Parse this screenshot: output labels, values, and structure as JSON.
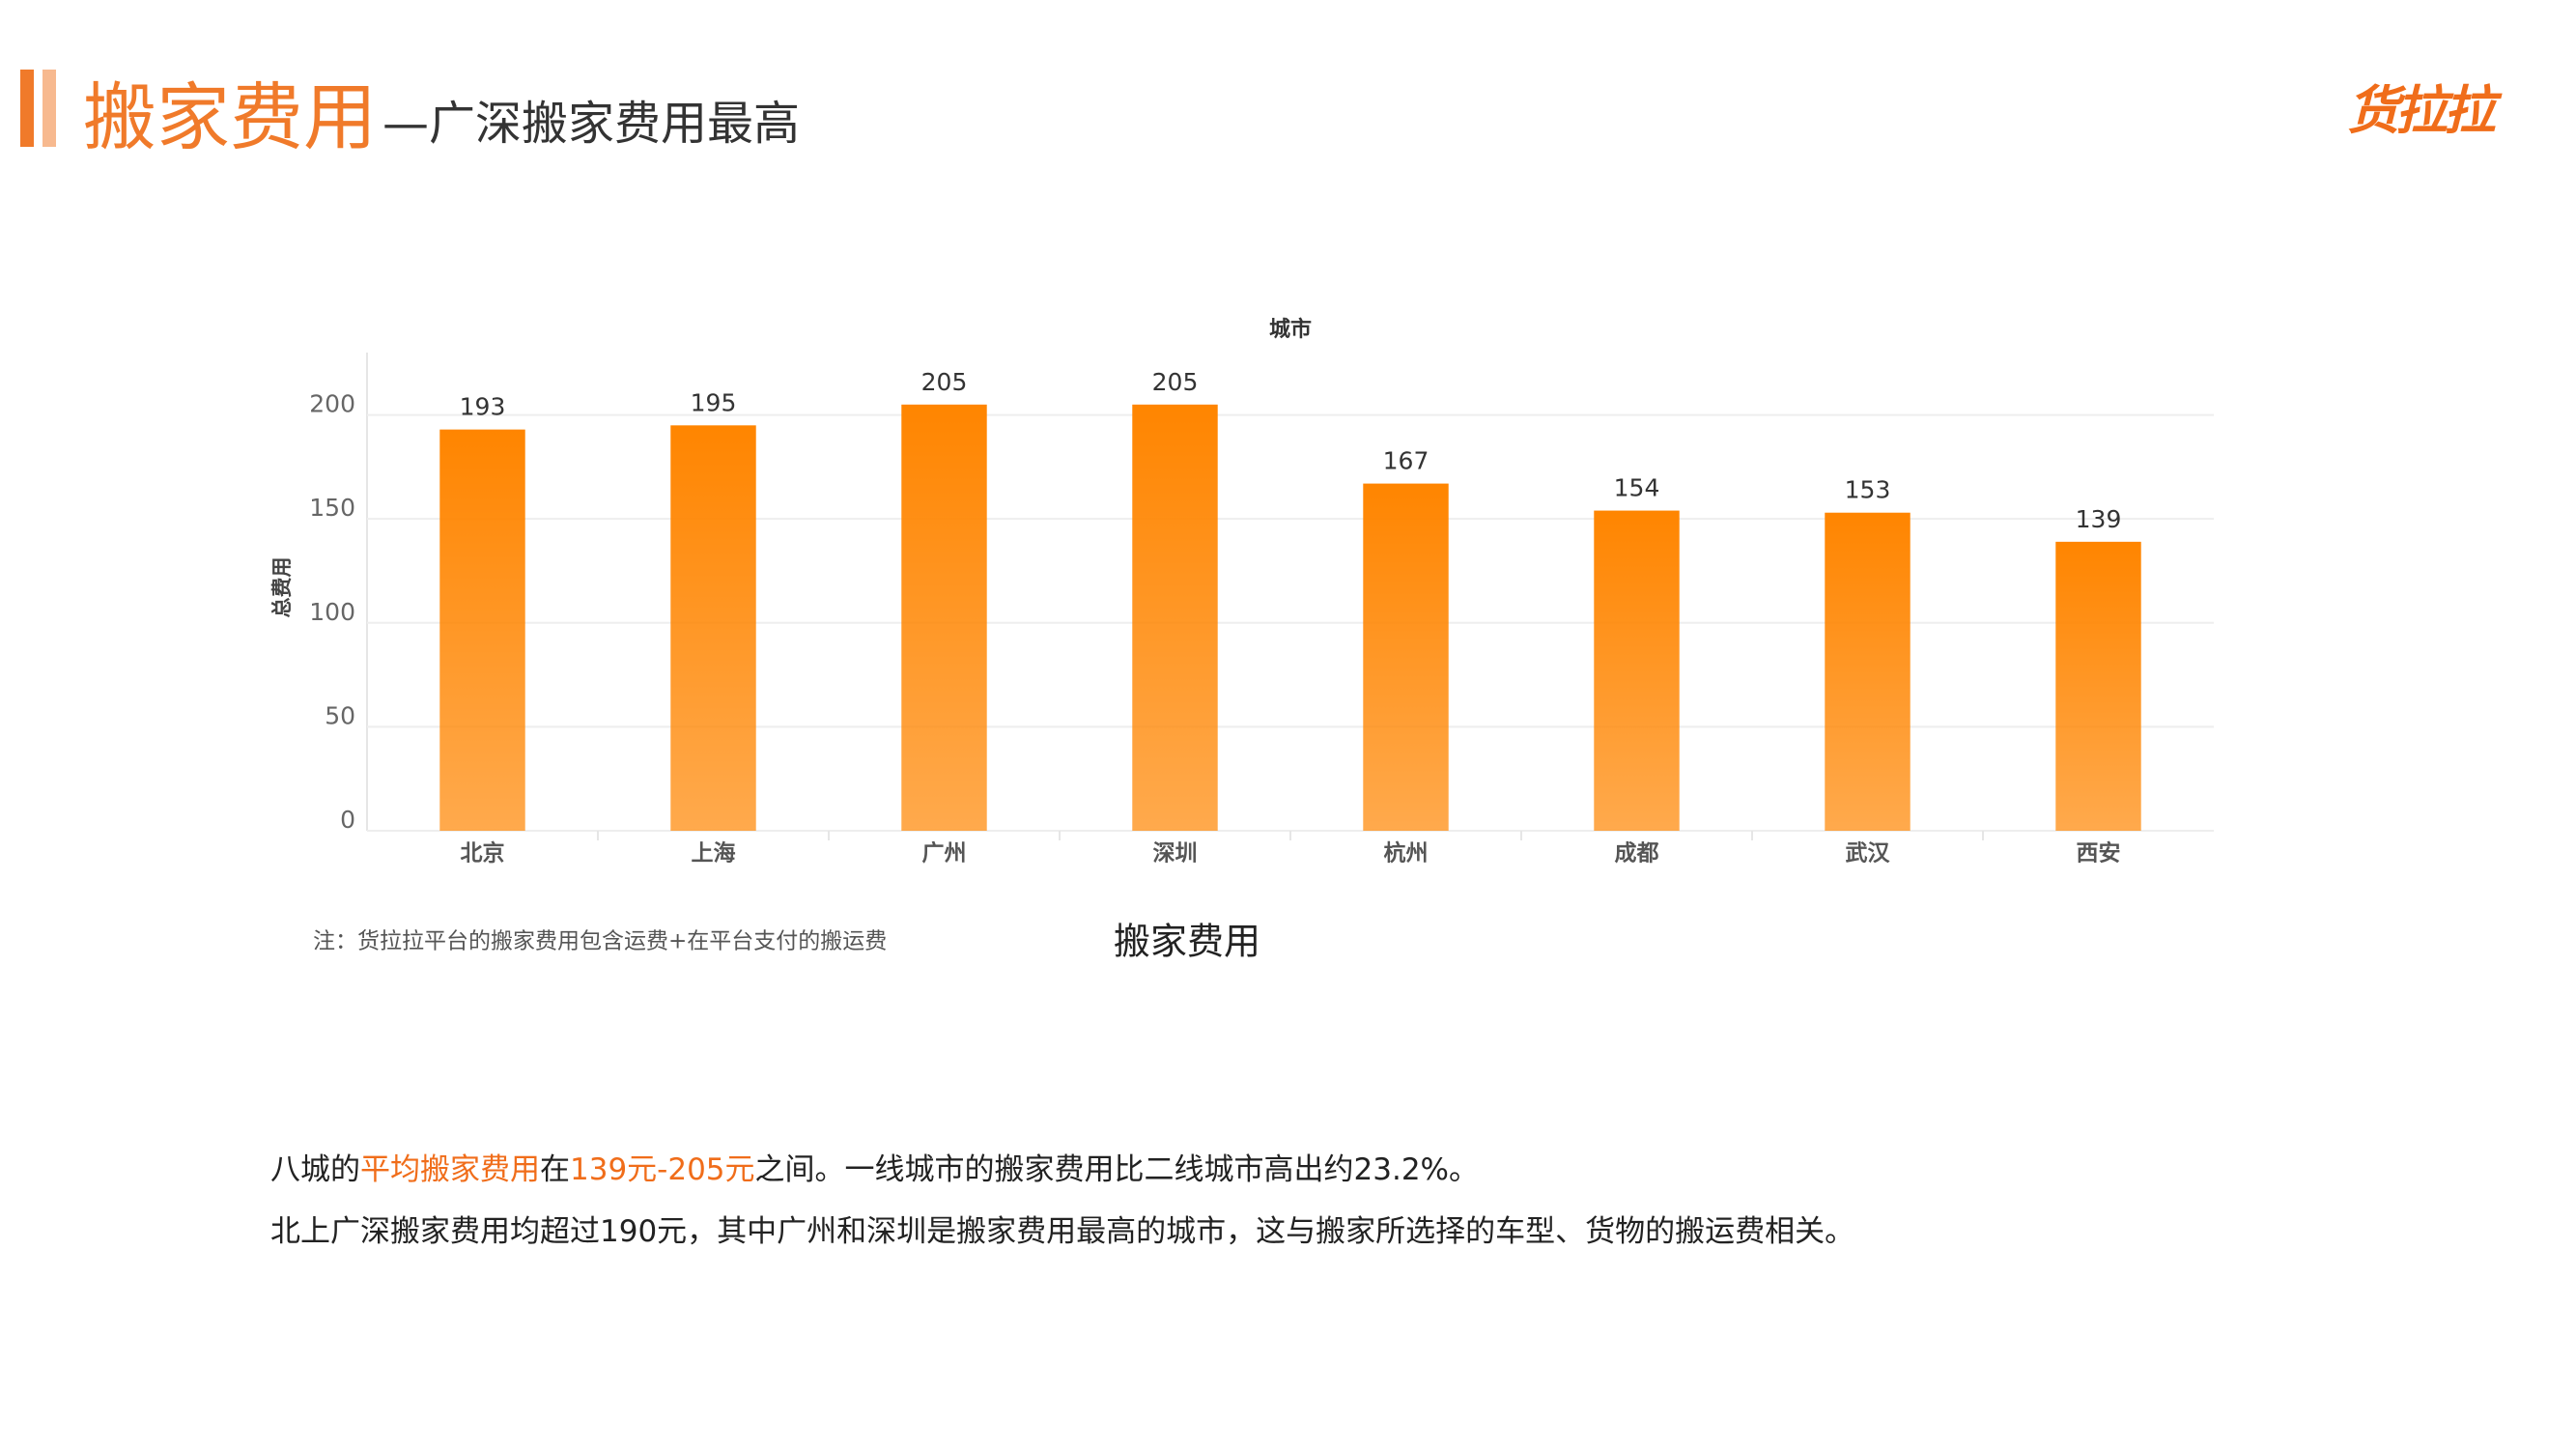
{
  "header": {
    "title": "搬家费用",
    "subtitle": "—广深搬家费用最高",
    "logo": "货拉拉"
  },
  "chart_data": {
    "type": "bar",
    "title": "城市",
    "ylabel": "总费用",
    "xlabel": "搬家费用",
    "categories": [
      "北京",
      "上海",
      "广州",
      "深圳",
      "杭州",
      "成都",
      "武汉",
      "西安"
    ],
    "values": [
      193,
      195,
      205,
      205,
      167,
      154,
      153,
      139
    ],
    "color": "#ff8500",
    "ylim": [
      0,
      230
    ],
    "yticks": [
      0,
      50,
      100,
      150,
      200
    ],
    "grid": true
  },
  "note": "注：货拉拉平台的搬家费用包含运费+在平台支付的搬运费",
  "text": {
    "paragraphs": [
      [
        "八城的",
        "平均搬家费用",
        "在",
        "139元-205元",
        "之间。一线城市的搬家费用比二线城市高出约23.2%。"
      ],
      [
        "北上广深搬家费用均超过190元，其中广州和深圳是搬家费用最高的城市，这与搬家所选择的车型、货物的搬运费相关。"
      ]
    ]
  }
}
